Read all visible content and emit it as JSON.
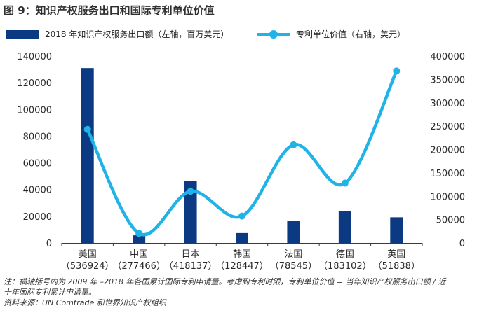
{
  "title": "图 9：知识产权服务出口和国际专利单位价值",
  "legend": {
    "bar_label": "2018 年知识产权服务出口额（左轴，百万美元）",
    "line_label": "专利单位价值（右轴，美元）"
  },
  "notes": {
    "line1": "注：横轴括号内为 2009 年 –2018 年各国累计国际专利申请量。考虑到专利时限，专利单位价值 = 当年知识产权服务出口额 / 近",
    "line2": "十年国际专利累计申请量。",
    "source": "资料来源：UN Comtrade 和世界知识产权组织"
  },
  "chart_data": {
    "type": "bar",
    "title": "图 9：知识产权服务出口和国际专利单位价值",
    "categories": [
      "美国",
      "中国",
      "日本",
      "韩国",
      "法国",
      "德国",
      "英国"
    ],
    "category_sublabels": [
      "（536924）",
      "（277466）",
      "（418137）",
      "（128447）",
      "（78545）",
      "（183102）",
      "（51838）"
    ],
    "series": [
      {
        "name": "2018 年知识产权服务出口额（左轴，百万美元）",
        "axis": "left",
        "type": "bar",
        "color": "#0b3a82",
        "values": [
          131000,
          5700,
          46500,
          7400,
          16400,
          23800,
          19200
        ]
      },
      {
        "name": "专利单位价值（右轴，美元）",
        "axis": "right",
        "type": "line",
        "color": "#1fb3e8",
        "values": [
          243000,
          20500,
          110500,
          57500,
          210000,
          128000,
          368000
        ]
      }
    ],
    "y_left": {
      "min": 0,
      "max": 140000,
      "ticks": [
        "0",
        "20000",
        "40000",
        "60000",
        "80000",
        "100000",
        "120000",
        "140000"
      ]
    },
    "y_right": {
      "min": 0,
      "max": 400000,
      "ticks": [
        "0",
        "50000",
        "100000",
        "150000",
        "200000",
        "250000",
        "300000",
        "350000",
        "400000"
      ]
    },
    "xlabel": "",
    "grid": false
  }
}
